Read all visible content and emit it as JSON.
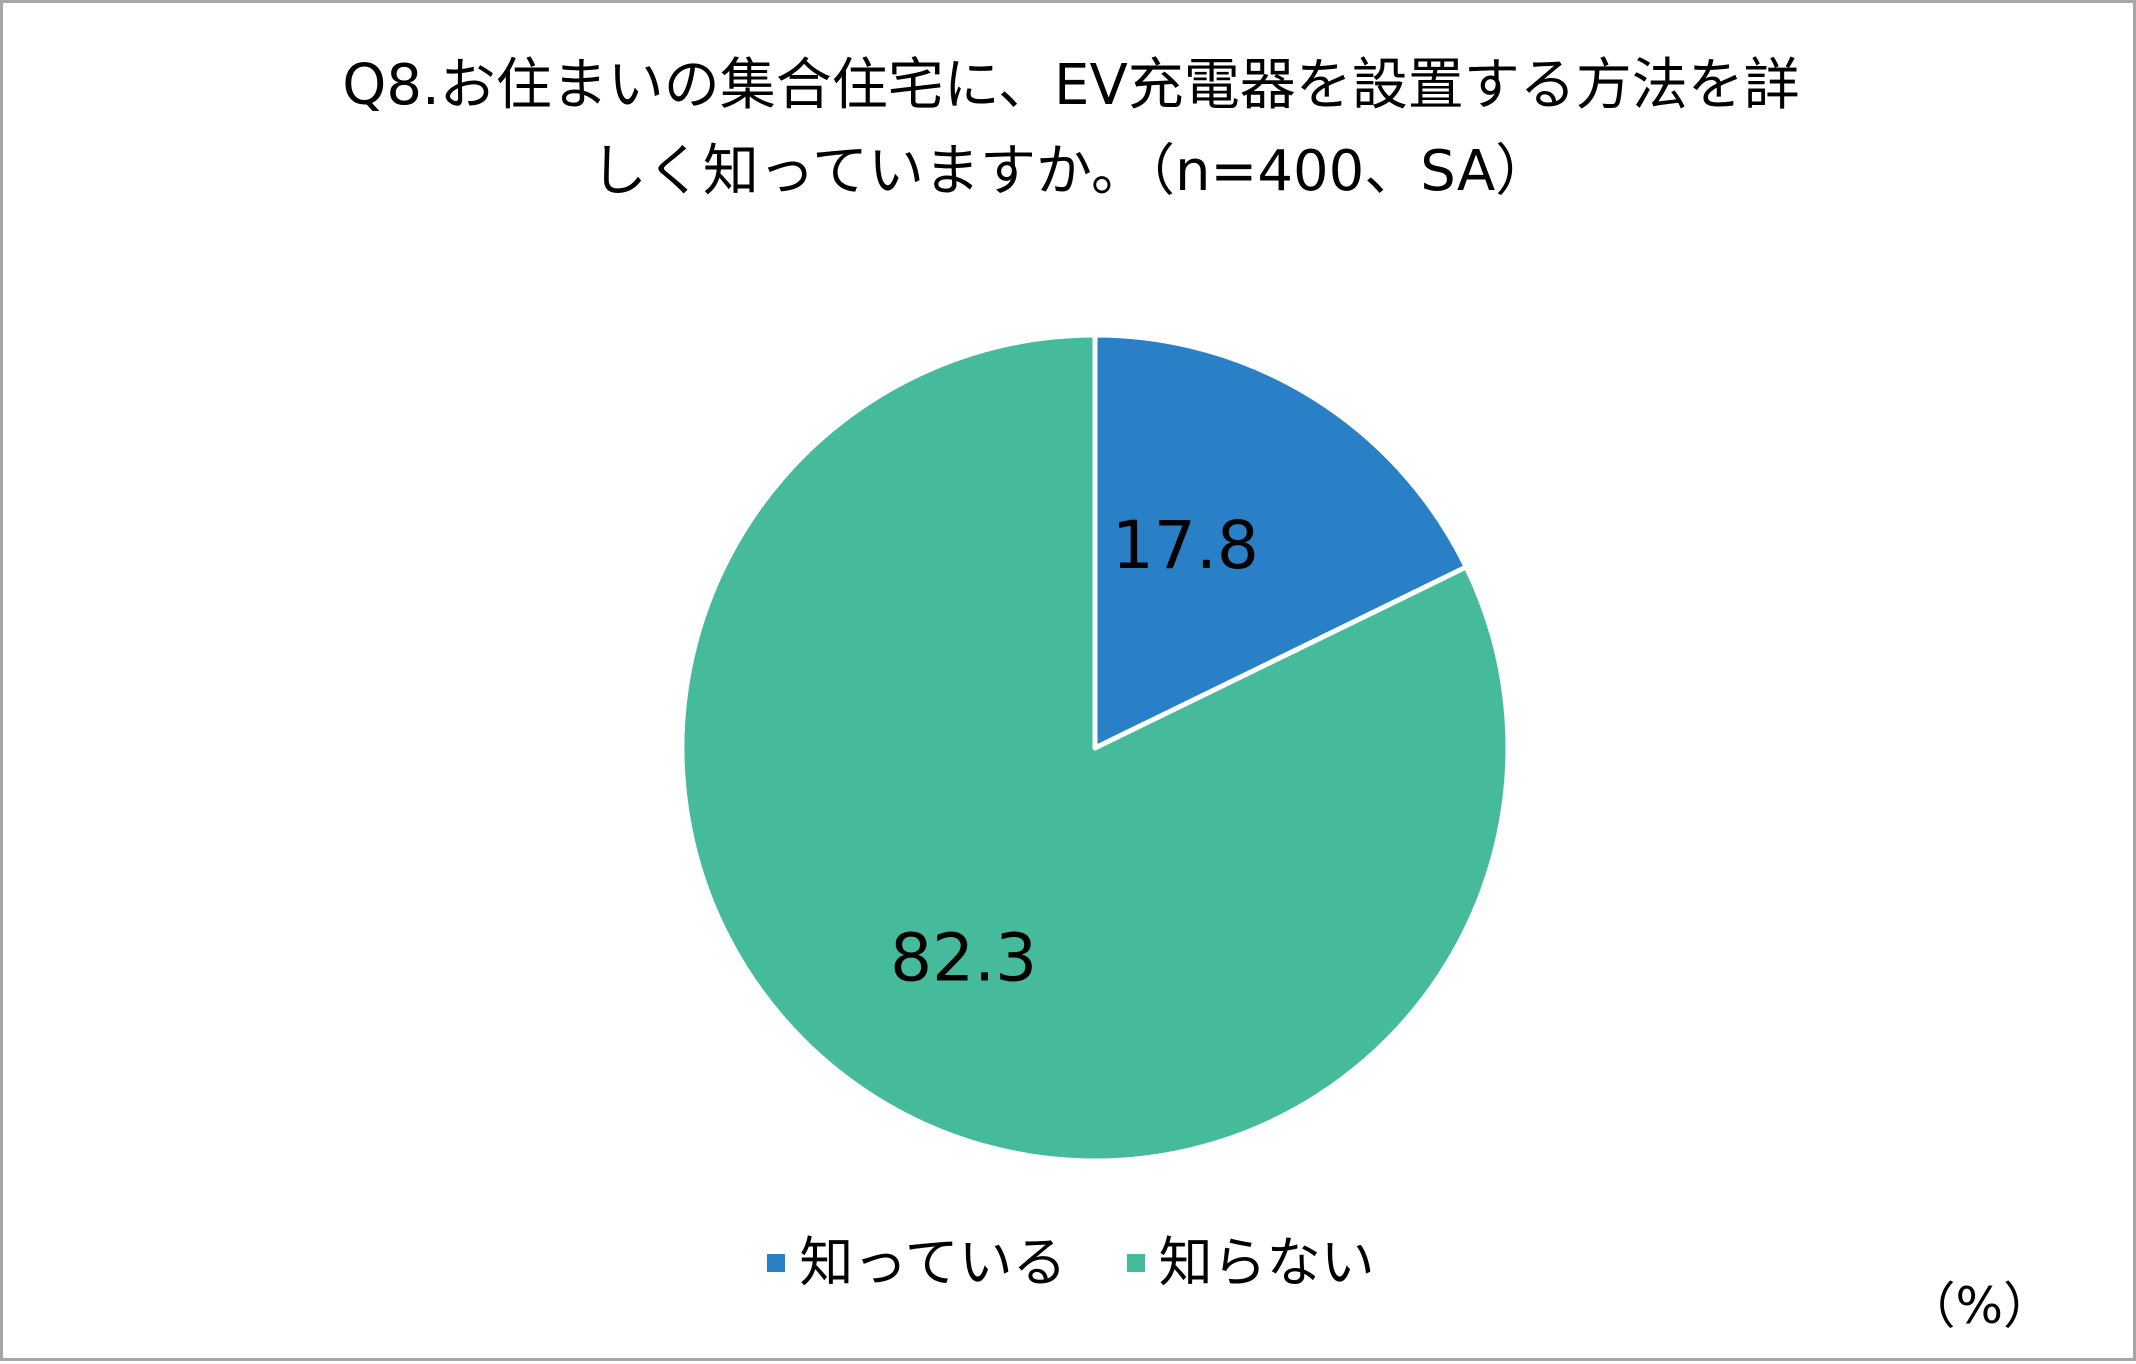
{
  "chart_data": {
    "type": "pie",
    "title": "Q8.お住まいの集合住宅に、EV充電器を設置する方法を詳しく知っていますか。（n=400、SA）",
    "title_lines": [
      "Q8.お住まいの集合住宅に、EV充電器を設置する方法を詳",
      "しく知っていますか。（n=400、SA）"
    ],
    "categories": [
      "知っている",
      "知らない"
    ],
    "values": [
      17.8,
      82.3
    ],
    "value_labels": [
      "17.8",
      "82.3"
    ],
    "colors": [
      "#2980c6",
      "#45bb9b"
    ],
    "unit_label": "（%）",
    "legend_position": "bottom",
    "start_angle": "12 o'clock",
    "direction": "clockwise"
  }
}
